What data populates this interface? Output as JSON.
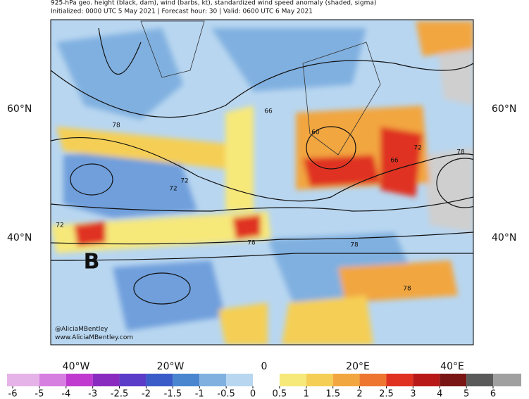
{
  "header": {
    "title": "925-hPa geo. height (black, dam), wind (barbs, kt), standardized wind speed anomaly (shaded, sigma)",
    "subtitle": "Initialized: 0000 UTC 5 May 2021 | Forecast hour: 30 | Valid: 0600 UTC 6 May 2021"
  },
  "map": {
    "lat_labels": [
      "60°N",
      "40°N"
    ],
    "lon_labels": [
      "40°W",
      "20°W",
      "0",
      "20°E",
      "40°E"
    ],
    "contour_labels": [
      "78",
      "72",
      "66",
      "60",
      "66",
      "72",
      "78",
      "72",
      "78",
      "78",
      "72",
      "78"
    ],
    "annotation": "B",
    "credit": [
      "@AliciaMBentley",
      "www.AliciaMBentley.com"
    ]
  },
  "colorbar": {
    "levels": [
      -6,
      -5,
      -4,
      -3,
      -2.5,
      -2,
      -1.5,
      -1,
      -0.5,
      0,
      0.5,
      1,
      1.5,
      2,
      2.5,
      3,
      4,
      5,
      6
    ],
    "colors": [
      "#e6b3e8",
      "#d77fe0",
      "#c03ad0",
      "#8a2bc0",
      "#5a3cc8",
      "#3a5cc8",
      "#4a86d0",
      "#80b0e0",
      "#b8d6f0",
      "#ffffff",
      "#f7e87a",
      "#f5cf55",
      "#f2a640",
      "#ee7530",
      "#e03020",
      "#b81818",
      "#7a1515",
      "#5a5a5a"
    ]
  }
}
